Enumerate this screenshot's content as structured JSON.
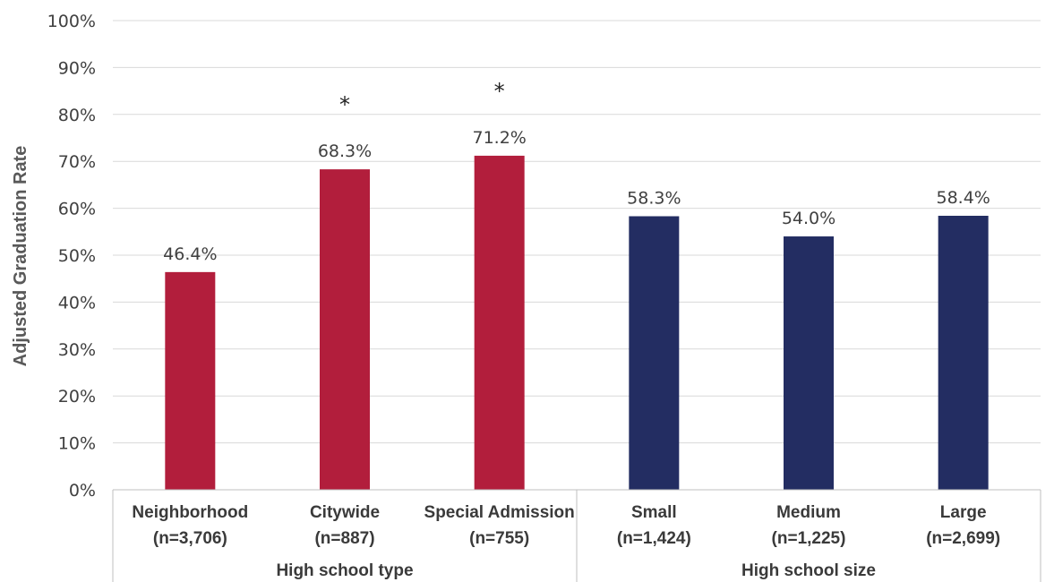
{
  "chart_data": {
    "type": "bar",
    "title": "",
    "ylabel": "Adjusted Graduation Rate",
    "xlabel": "",
    "ylim": [
      0,
      100
    ],
    "yticks": [
      0,
      10,
      20,
      30,
      40,
      50,
      60,
      70,
      80,
      90,
      100
    ],
    "ytick_labels": [
      "0%",
      "10%",
      "20%",
      "30%",
      "40%",
      "50%",
      "60%",
      "70%",
      "80%",
      "90%",
      "100%"
    ],
    "grid": true,
    "legend": "none",
    "groups": [
      {
        "label": "High school type",
        "color": "#b21e3c",
        "categories": [
          {
            "name": "Neighborhood",
            "n": "(n=3,706)",
            "value": 46.4,
            "label": "46.4%",
            "significant": false
          },
          {
            "name": "Citywide",
            "n": "(n=887)",
            "value": 68.3,
            "label": "68.3%",
            "significant": true
          },
          {
            "name": "Special Admission",
            "n": "(n=755)",
            "value": 71.2,
            "label": "71.2%",
            "significant": true
          }
        ]
      },
      {
        "label": "High school size",
        "color": "#232d62",
        "categories": [
          {
            "name": "Small",
            "n": "(n=1,424)",
            "value": 58.3,
            "label": "58.3%",
            "significant": false
          },
          {
            "name": "Medium",
            "n": "(n=1,225)",
            "value": 54.0,
            "label": "54.0%",
            "significant": false
          },
          {
            "name": "Large",
            "n": "(n=2,699)",
            "value": 58.4,
            "label": "58.4%",
            "significant": false
          }
        ]
      }
    ],
    "significance_marker": "*"
  }
}
